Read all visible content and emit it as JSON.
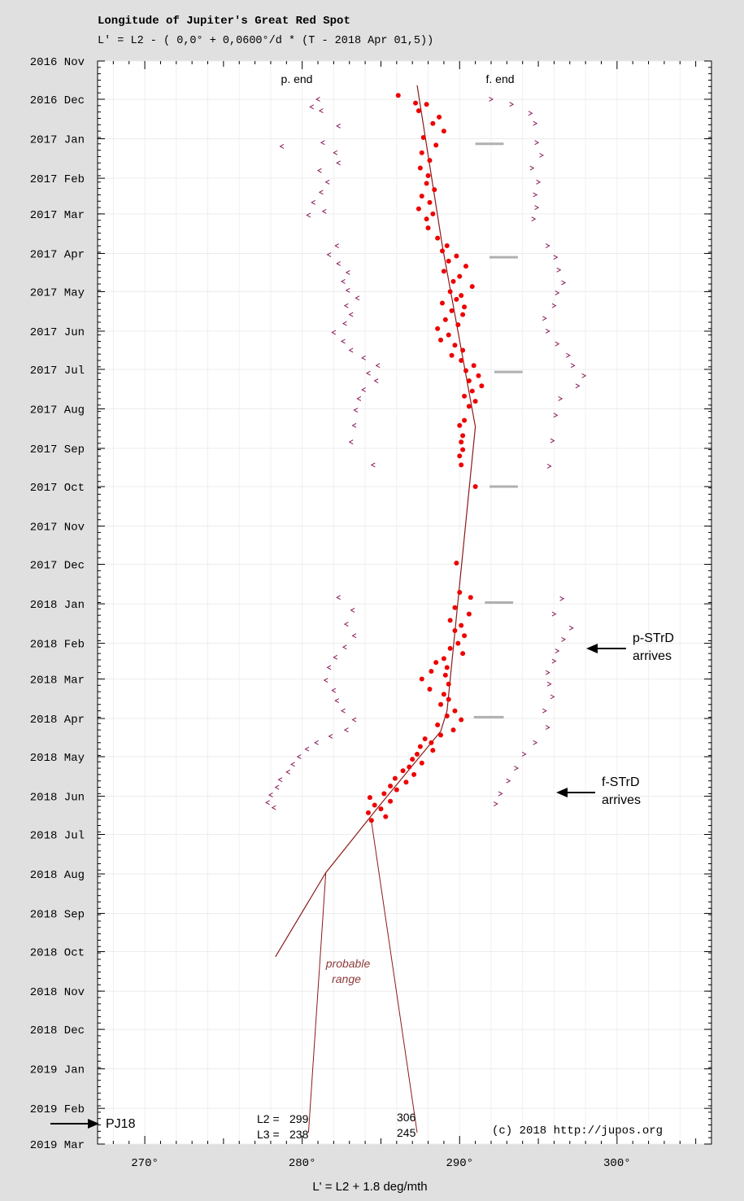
{
  "header": {
    "title": "Longitude of Jupiter's Great Red Spot",
    "formula": "L' = L2 - (  0,0° + 0,0600°/d * (T - 2018 Apr 01,5))"
  },
  "chart_data": {
    "type": "scatter",
    "title": "Longitude of Jupiter's Great Red Spot",
    "xlabel": "L' = L2 + 1.8 deg/mth",
    "ylabel": "",
    "xlim": [
      267,
      306
    ],
    "x_ticks": [
      270,
      280,
      290,
      300
    ],
    "x_tick_labels": [
      "270°",
      "280°",
      "290°",
      "300°"
    ],
    "y_range": [
      "2016 Nov",
      "2019 Mar"
    ],
    "y_ticks": [
      {
        "date": "2016-11-01",
        "label": "2016 Nov"
      },
      {
        "date": "2016-12-01",
        "label": "2016 Dec"
      },
      {
        "date": "2017-01-01",
        "label": "2017 Jan"
      },
      {
        "date": "2017-02-01",
        "label": "2017 Feb"
      },
      {
        "date": "2017-03-01",
        "label": "2017 Mar"
      },
      {
        "date": "2017-04-01",
        "label": "2017 Apr"
      },
      {
        "date": "2017-05-01",
        "label": "2017 May"
      },
      {
        "date": "2017-06-01",
        "label": "2017 Jun"
      },
      {
        "date": "2017-07-01",
        "label": "2017 Jul"
      },
      {
        "date": "2017-08-01",
        "label": "2017 Aug"
      },
      {
        "date": "2017-09-01",
        "label": "2017 Sep"
      },
      {
        "date": "2017-10-01",
        "label": "2017 Oct"
      },
      {
        "date": "2017-11-01",
        "label": "2017 Nov"
      },
      {
        "date": "2017-12-01",
        "label": "2017 Dec"
      },
      {
        "date": "2018-01-01",
        "label": "2018 Jan"
      },
      {
        "date": "2018-02-01",
        "label": "2018 Feb"
      },
      {
        "date": "2018-03-01",
        "label": "2018 Mar"
      },
      {
        "date": "2018-04-01",
        "label": "2018 Apr"
      },
      {
        "date": "2018-05-01",
        "label": "2018 May"
      },
      {
        "date": "2018-06-01",
        "label": "2018 Jun"
      },
      {
        "date": "2018-07-01",
        "label": "2018 Jul"
      },
      {
        "date": "2018-08-01",
        "label": "2018 Aug"
      },
      {
        "date": "2018-09-01",
        "label": "2018 Sep"
      },
      {
        "date": "2018-10-01",
        "label": "2018 Oct"
      },
      {
        "date": "2018-11-01",
        "label": "2018 Nov"
      },
      {
        "date": "2018-12-01",
        "label": "2018 Dec"
      },
      {
        "date": "2019-01-01",
        "label": "2019 Jan"
      },
      {
        "date": "2019-02-01",
        "label": "2019 Feb"
      },
      {
        "date": "2019-03-01",
        "label": "2019 Mar"
      }
    ],
    "grid": true,
    "colors": {
      "center": "#ee0000",
      "edges": "#8b1a5a",
      "trend": "#8b1a1a",
      "jupiter_bar": "#b0b0b0"
    },
    "center_points_date_x": [
      [
        "2016-11-28",
        286.1
      ],
      [
        "2016-12-04",
        287.2
      ],
      [
        "2016-12-05",
        287.9
      ],
      [
        "2016-12-10",
        287.4
      ],
      [
        "2016-12-15",
        288.7
      ],
      [
        "2016-12-20",
        288.3
      ],
      [
        "2016-12-26",
        289.0
      ],
      [
        "2016-12-31",
        287.7
      ],
      [
        "2017-01-06",
        288.5
      ],
      [
        "2017-01-12",
        287.6
      ],
      [
        "2017-01-18",
        288.1
      ],
      [
        "2017-01-24",
        287.5
      ],
      [
        "2017-01-30",
        288.0
      ],
      [
        "2017-02-05",
        287.9
      ],
      [
        "2017-02-10",
        288.4
      ],
      [
        "2017-02-15",
        287.6
      ],
      [
        "2017-02-20",
        288.1
      ],
      [
        "2017-02-25",
        287.4
      ],
      [
        "2017-03-01",
        288.3
      ],
      [
        "2017-03-05",
        287.9
      ],
      [
        "2017-03-12",
        288.0
      ],
      [
        "2017-03-20",
        288.6
      ],
      [
        "2017-03-26",
        289.2
      ],
      [
        "2017-03-30",
        288.9
      ],
      [
        "2017-04-03",
        289.8
      ],
      [
        "2017-04-07",
        289.3
      ],
      [
        "2017-04-11",
        290.4
      ],
      [
        "2017-04-15",
        289.0
      ],
      [
        "2017-04-19",
        290.0
      ],
      [
        "2017-04-23",
        289.6
      ],
      [
        "2017-04-27",
        290.8
      ],
      [
        "2017-05-01",
        289.4
      ],
      [
        "2017-05-04",
        290.1
      ],
      [
        "2017-05-07",
        289.8
      ],
      [
        "2017-05-10",
        288.9
      ],
      [
        "2017-05-13",
        290.3
      ],
      [
        "2017-05-16",
        289.5
      ],
      [
        "2017-05-19",
        290.2
      ],
      [
        "2017-05-23",
        289.1
      ],
      [
        "2017-05-27",
        289.9
      ],
      [
        "2017-05-30",
        288.6
      ],
      [
        "2017-06-04",
        289.3
      ],
      [
        "2017-06-08",
        288.8
      ],
      [
        "2017-06-12",
        289.7
      ],
      [
        "2017-06-16",
        290.2
      ],
      [
        "2017-06-20",
        289.5
      ],
      [
        "2017-06-24",
        290.1
      ],
      [
        "2017-06-28",
        290.9
      ],
      [
        "2017-07-02",
        290.4
      ],
      [
        "2017-07-06",
        291.2
      ],
      [
        "2017-07-10",
        290.6
      ],
      [
        "2017-07-14",
        291.4
      ],
      [
        "2017-07-18",
        290.8
      ],
      [
        "2017-07-22",
        290.3
      ],
      [
        "2017-07-26",
        291.0
      ],
      [
        "2017-07-30",
        290.6
      ],
      [
        "2017-08-10",
        290.3
      ],
      [
        "2017-08-14",
        290.0
      ],
      [
        "2017-08-22",
        290.2
      ],
      [
        "2017-08-27",
        290.1
      ],
      [
        "2017-09-02",
        290.2
      ],
      [
        "2017-09-07",
        290.0
      ],
      [
        "2017-09-14",
        290.1
      ],
      [
        "2017-10-01",
        291.0
      ],
      [
        "2017-11-30",
        289.8
      ],
      [
        "2017-12-23",
        290.0
      ],
      [
        "2017-12-27",
        290.7
      ],
      [
        "2018-01-04",
        289.7
      ],
      [
        "2018-01-09",
        290.6
      ],
      [
        "2018-01-14",
        289.4
      ],
      [
        "2018-01-18",
        290.1
      ],
      [
        "2018-01-22",
        289.7
      ],
      [
        "2018-01-26",
        290.3
      ],
      [
        "2018-02-01",
        289.9
      ],
      [
        "2018-02-05",
        289.4
      ],
      [
        "2018-02-09",
        290.2
      ],
      [
        "2018-02-13",
        289.0
      ],
      [
        "2018-02-16",
        288.5
      ],
      [
        "2018-02-20",
        289.2
      ],
      [
        "2018-02-23",
        288.2
      ],
      [
        "2018-02-26",
        289.1
      ],
      [
        "2018-03-01",
        287.6
      ],
      [
        "2018-03-05",
        289.3
      ],
      [
        "2018-03-09",
        288.1
      ],
      [
        "2018-03-13",
        289.0
      ],
      [
        "2018-03-17",
        289.3
      ],
      [
        "2018-03-21",
        288.8
      ],
      [
        "2018-03-26",
        289.7
      ],
      [
        "2018-03-30",
        289.2
      ],
      [
        "2018-04-02",
        290.1
      ],
      [
        "2018-04-06",
        288.6
      ],
      [
        "2018-04-10",
        289.6
      ],
      [
        "2018-04-14",
        288.8
      ],
      [
        "2018-04-17",
        287.8
      ],
      [
        "2018-04-20",
        288.2
      ],
      [
        "2018-04-23",
        287.5
      ],
      [
        "2018-04-26",
        288.3
      ],
      [
        "2018-04-29",
        287.3
      ],
      [
        "2018-05-03",
        287.0
      ],
      [
        "2018-05-06",
        287.6
      ],
      [
        "2018-05-09",
        286.8
      ],
      [
        "2018-05-12",
        286.4
      ],
      [
        "2018-05-15",
        287.1
      ],
      [
        "2018-05-18",
        285.9
      ],
      [
        "2018-05-21",
        286.6
      ],
      [
        "2018-05-24",
        285.6
      ],
      [
        "2018-05-27",
        286.0
      ],
      [
        "2018-05-30",
        285.2
      ],
      [
        "2018-06-02",
        284.3
      ],
      [
        "2018-06-05",
        285.6
      ],
      [
        "2018-06-08",
        284.6
      ],
      [
        "2018-06-11",
        285.0
      ],
      [
        "2018-06-14",
        284.2
      ],
      [
        "2018-06-17",
        285.3
      ],
      [
        "2018-06-20",
        284.4
      ]
    ],
    "p_end_points_date_x": [
      [
        "2016-12-01",
        281.0
      ],
      [
        "2016-12-07",
        280.6
      ],
      [
        "2016-12-10",
        281.2
      ],
      [
        "2016-12-22",
        282.3
      ],
      [
        "2017-01-04",
        281.3
      ],
      [
        "2017-01-07",
        278.7
      ],
      [
        "2017-01-12",
        282.1
      ],
      [
        "2017-01-20",
        282.3
      ],
      [
        "2017-01-26",
        281.1
      ],
      [
        "2017-02-04",
        281.6
      ],
      [
        "2017-02-12",
        281.2
      ],
      [
        "2017-02-20",
        280.7
      ],
      [
        "2017-02-27",
        281.4
      ],
      [
        "2017-03-02",
        280.4
      ],
      [
        "2017-03-26",
        282.2
      ],
      [
        "2017-04-02",
        281.7
      ],
      [
        "2017-04-09",
        282.3
      ],
      [
        "2017-04-16",
        282.9
      ],
      [
        "2017-04-23",
        282.6
      ],
      [
        "2017-04-30",
        282.9
      ],
      [
        "2017-05-06",
        283.5
      ],
      [
        "2017-05-12",
        282.8
      ],
      [
        "2017-05-19",
        283.1
      ],
      [
        "2017-05-26",
        282.7
      ],
      [
        "2017-06-02",
        282.0
      ],
      [
        "2017-06-09",
        282.6
      ],
      [
        "2017-06-16",
        283.1
      ],
      [
        "2017-06-22",
        283.9
      ],
      [
        "2017-06-28",
        284.8
      ],
      [
        "2017-07-04",
        284.2
      ],
      [
        "2017-07-10",
        284.7
      ],
      [
        "2017-07-17",
        283.9
      ],
      [
        "2017-07-24",
        283.6
      ],
      [
        "2017-08-02",
        283.4
      ],
      [
        "2017-08-14",
        283.3
      ],
      [
        "2017-08-27",
        283.1
      ],
      [
        "2017-09-14",
        284.5
      ],
      [
        "2017-12-27",
        282.3
      ],
      [
        "2018-01-06",
        283.2
      ],
      [
        "2018-01-17",
        282.8
      ],
      [
        "2018-01-26",
        283.3
      ],
      [
        "2018-02-04",
        282.7
      ],
      [
        "2018-02-12",
        282.1
      ],
      [
        "2018-02-20",
        281.7
      ],
      [
        "2018-03-02",
        281.5
      ],
      [
        "2018-03-10",
        282.0
      ],
      [
        "2018-03-18",
        282.2
      ],
      [
        "2018-03-26",
        282.6
      ],
      [
        "2018-04-02",
        283.3
      ],
      [
        "2018-04-10",
        282.8
      ],
      [
        "2018-04-15",
        281.8
      ],
      [
        "2018-04-20",
        280.9
      ],
      [
        "2018-04-25",
        280.3
      ],
      [
        "2018-05-01",
        279.8
      ],
      [
        "2018-05-07",
        279.4
      ],
      [
        "2018-05-13",
        279.1
      ],
      [
        "2018-05-19",
        278.6
      ],
      [
        "2018-05-25",
        278.4
      ],
      [
        "2018-05-31",
        278.0
      ],
      [
        "2018-06-06",
        277.8
      ],
      [
        "2018-06-10",
        278.2
      ]
    ],
    "f_end_points_date_x": [
      [
        "2016-12-01",
        292.0
      ],
      [
        "2016-12-05",
        293.3
      ],
      [
        "2016-12-12",
        294.5
      ],
      [
        "2016-12-20",
        294.8
      ],
      [
        "2017-01-04",
        294.9
      ],
      [
        "2017-01-14",
        295.2
      ],
      [
        "2017-01-24",
        294.6
      ],
      [
        "2017-02-04",
        295.0
      ],
      [
        "2017-02-14",
        294.8
      ],
      [
        "2017-02-24",
        294.9
      ],
      [
        "2017-03-05",
        294.7
      ],
      [
        "2017-03-26",
        295.6
      ],
      [
        "2017-04-04",
        296.1
      ],
      [
        "2017-04-14",
        296.3
      ],
      [
        "2017-04-24",
        296.6
      ],
      [
        "2017-05-02",
        296.2
      ],
      [
        "2017-05-12",
        296.0
      ],
      [
        "2017-05-22",
        295.4
      ],
      [
        "2017-06-01",
        295.6
      ],
      [
        "2017-06-11",
        296.2
      ],
      [
        "2017-06-20",
        296.9
      ],
      [
        "2017-06-28",
        297.2
      ],
      [
        "2017-07-06",
        297.9
      ],
      [
        "2017-07-14",
        297.5
      ],
      [
        "2017-07-24",
        296.4
      ],
      [
        "2017-08-06",
        296.1
      ],
      [
        "2017-08-26",
        295.9
      ],
      [
        "2017-09-15",
        295.7
      ],
      [
        "2017-12-28",
        296.5
      ],
      [
        "2018-01-09",
        296.0
      ],
      [
        "2018-01-20",
        297.1
      ],
      [
        "2018-01-29",
        296.6
      ],
      [
        "2018-02-07",
        296.2
      ],
      [
        "2018-02-15",
        296.0
      ],
      [
        "2018-02-24",
        295.6
      ],
      [
        "2018-03-05",
        295.7
      ],
      [
        "2018-03-15",
        295.9
      ],
      [
        "2018-03-26",
        295.4
      ],
      [
        "2018-04-08",
        295.6
      ],
      [
        "2018-04-20",
        294.8
      ],
      [
        "2018-04-29",
        294.1
      ],
      [
        "2018-05-10",
        293.6
      ],
      [
        "2018-05-20",
        293.1
      ],
      [
        "2018-05-30",
        292.6
      ],
      [
        "2018-06-07",
        292.3
      ]
    ],
    "trend_line_date_x": [
      [
        "2016-11-20",
        287.3
      ],
      [
        "2017-03-26",
        288.9
      ],
      [
        "2017-08-15",
        291.0
      ],
      [
        "2018-03-26",
        289.2
      ],
      [
        "2018-04-11",
        288.8
      ],
      [
        "2018-06-10",
        284.8
      ],
      [
        "2018-07-31",
        281.5
      ],
      [
        "2018-10-05",
        278.3
      ]
    ],
    "probable_range_date_x": [
      [
        [
          "2018-07-31",
          281.5
        ],
        [
          "2019-02-20",
          280.4
        ]
      ],
      [
        [
          "2018-06-21",
          284.4
        ],
        [
          "2019-02-20",
          287.3
        ]
      ]
    ],
    "jupiter_bars_date_x": [
      [
        "2017-01-05",
        291.0,
        292.8
      ],
      [
        "2017-04-04",
        291.9,
        293.7
      ],
      [
        "2017-07-03",
        292.2,
        294.0
      ],
      [
        "2017-10-01",
        291.9,
        293.7
      ],
      [
        "2017-12-31",
        291.6,
        293.4
      ],
      [
        "2018-03-31",
        290.9,
        292.8
      ]
    ],
    "labels": {
      "p_end": "p. end",
      "f_end": "f. end",
      "probable_1": "probable",
      "probable_2": "range",
      "pstrd_1": "p-STrD",
      "pstrd_2": "arrives",
      "fstrd_1": "f-STrD",
      "fstrd_2": "arrives",
      "pj18": "PJ18",
      "l2_row": "L2 =",
      "l3_row": "L3 =",
      "l2_low": "299",
      "l3_low": "238",
      "l2_high": "306",
      "l3_high": "245",
      "credit": "(c) 2018 http://jupos.org"
    }
  }
}
